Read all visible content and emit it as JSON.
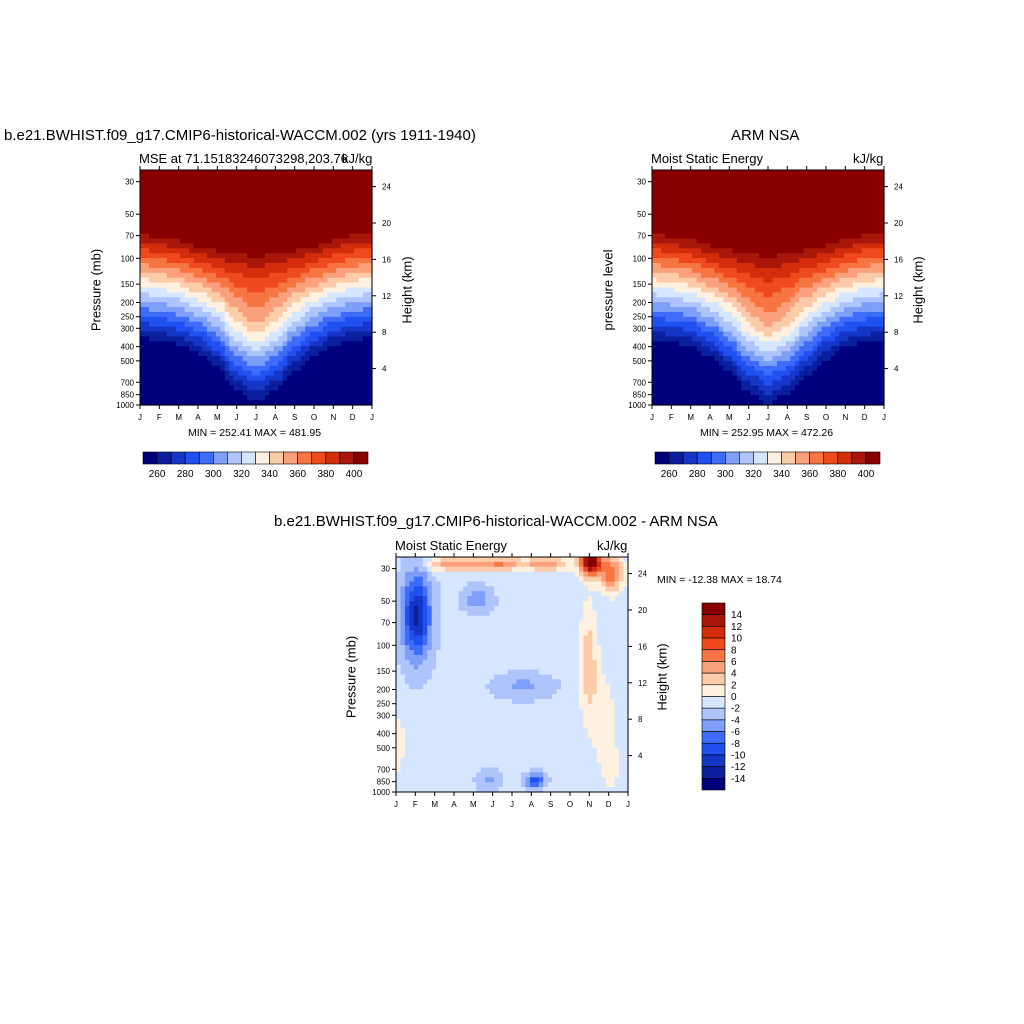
{
  "colors": {
    "sequential": [
      "#00007f",
      "#0a1f9e",
      "#1636c8",
      "#2050f0",
      "#3e6cf8",
      "#7d9ff7",
      "#aec4fb",
      "#d6e6ff",
      "#fff1e0",
      "#fccbaa",
      "#fba07c",
      "#f77443",
      "#ef4a1d",
      "#d32d0c",
      "#a9170a",
      "#880000"
    ],
    "diverging": [
      "#00007f",
      "#0a1f9e",
      "#1636c8",
      "#2050f0",
      "#3e6cf8",
      "#7d9ff7",
      "#aec4fb",
      "#d6e6ff",
      "#fff1e0",
      "#fccbaa",
      "#fba07c",
      "#f77443",
      "#ef4a1d",
      "#d32d0c",
      "#a9170a",
      "#880000"
    ]
  },
  "panels": {
    "model": {
      "case_title": "b.e21.BWHIST.f09_g17.CMIP6-historical-WACCM.002 (yrs 1911-1940)",
      "left_label": "MSE at 71.15183246073298,203.76",
      "units": "kJ/kg",
      "ylabel_left": "Pressure (mb)",
      "ylabel_right": "Height (km)",
      "stats": "MIN = 252.41 MAX = 481.95"
    },
    "obs": {
      "title": "ARM NSA",
      "left_label": "Moist Static Energy",
      "units": "kJ/kg",
      "ylabel_left": "pressure level",
      "ylabel_right": "Height (km)",
      "stats": "MIN = 252.95 MAX = 472.26"
    },
    "diff": {
      "title": "b.e21.BWHIST.f09_g17.CMIP6-historical-WACCM.002 - ARM NSA",
      "left_label": "Moist Static Energy",
      "units": "kJ/kg",
      "ylabel_left": "Pressure (mb)",
      "ylabel_right": "Height (km)",
      "stats": "MIN = -12.38 MAX =  18.74"
    }
  },
  "chart_data": [
    {
      "type": "heatmap",
      "panel": "model",
      "x_categories": [
        "J",
        "F",
        "M",
        "A",
        "M",
        "J",
        "J",
        "A",
        "S",
        "O",
        "N",
        "D",
        "J"
      ],
      "pressure_ticks": [
        30,
        50,
        70,
        100,
        150,
        200,
        250,
        300,
        400,
        500,
        700,
        850,
        1000
      ],
      "height_ticks": [
        4,
        8,
        12,
        16,
        20,
        24
      ],
      "ylim": [
        1000,
        25
      ],
      "levels": [
        260,
        270,
        280,
        290,
        300,
        310,
        320,
        330,
        340,
        350,
        360,
        370,
        380,
        390,
        400
      ],
      "colorbar_labels": [
        "260",
        "280",
        "300",
        "320",
        "340",
        "360",
        "380",
        "400"
      ],
      "grid": false
    },
    {
      "type": "heatmap",
      "panel": "obs",
      "x_categories": [
        "J",
        "F",
        "M",
        "A",
        "M",
        "J",
        "J",
        "A",
        "S",
        "O",
        "N",
        "D",
        "J"
      ],
      "pressure_ticks": [
        30,
        50,
        70,
        100,
        150,
        200,
        250,
        300,
        400,
        500,
        700,
        850,
        1000
      ],
      "height_ticks": [
        4,
        8,
        12,
        16,
        20,
        24
      ],
      "ylim": [
        1000,
        25
      ],
      "levels": [
        260,
        270,
        280,
        290,
        300,
        310,
        320,
        330,
        340,
        350,
        360,
        370,
        380,
        390,
        400
      ],
      "colorbar_labels": [
        "260",
        "280",
        "300",
        "320",
        "340",
        "360",
        "380",
        "400"
      ],
      "grid": false
    },
    {
      "type": "heatmap",
      "panel": "diff",
      "x_categories": [
        "J",
        "F",
        "M",
        "A",
        "M",
        "J",
        "J",
        "A",
        "S",
        "O",
        "N",
        "D",
        "J"
      ],
      "pressure_ticks": [
        30,
        50,
        70,
        100,
        150,
        200,
        250,
        300,
        400,
        500,
        700,
        850,
        1000
      ],
      "height_ticks": [
        4,
        8,
        12,
        16,
        20,
        24
      ],
      "ylim": [
        1000,
        25
      ],
      "levels": [
        -14,
        -12,
        -10,
        -8,
        -6,
        -4,
        -2,
        0,
        2,
        4,
        6,
        8,
        10,
        12,
        14
      ],
      "colorbar_labels": [
        "14",
        "12",
        "10",
        "8",
        "6",
        "4",
        "2",
        "0",
        "-2",
        "-4",
        "-6",
        "-8",
        "-10",
        "-12",
        "-14"
      ],
      "grid": false
    }
  ]
}
